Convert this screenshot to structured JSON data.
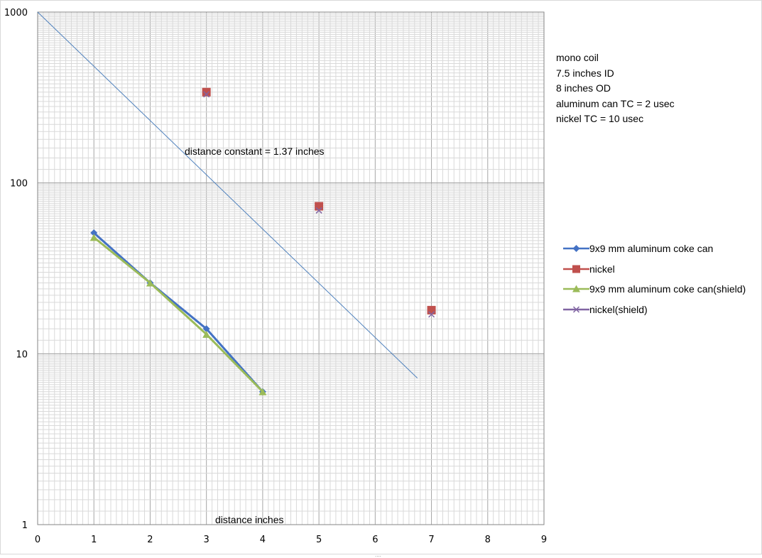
{
  "chart_data": {
    "type": "line",
    "xlim": [
      0,
      9
    ],
    "ylim": [
      1,
      1000
    ],
    "yscale": "log",
    "x_ticks": [
      "0",
      "1",
      "2",
      "3",
      "4",
      "5",
      "6",
      "7",
      "8",
      "9"
    ],
    "y_ticks": [
      {
        "value": 1,
        "label": "1"
      },
      {
        "value": 10,
        "label": "10"
      },
      {
        "value": 100,
        "label": "100"
      },
      {
        "value": 1000,
        "label": "1000"
      }
    ],
    "grid": true,
    "legend_position": "right",
    "series": [
      {
        "name": "9x9 mm aluminum coke can",
        "color": "#4472C4",
        "marker": "diamond",
        "line": true,
        "x": [
          1,
          2,
          3,
          4
        ],
        "y": [
          51,
          26,
          14,
          6
        ]
      },
      {
        "name": "nickel",
        "color": "#C0504D",
        "marker": "square",
        "line": false,
        "x": [
          3,
          5,
          7
        ],
        "y": [
          340,
          73,
          18
        ]
      },
      {
        "name": "9x9 mm aluminum coke can(shield)",
        "color": "#9BBB59",
        "marker": "triangle",
        "line": true,
        "x": [
          1,
          2,
          3,
          4
        ],
        "y": [
          48,
          26,
          13,
          6
        ]
      },
      {
        "name": "nickel(shield)",
        "color": "#8064A2",
        "marker": "x",
        "line": false,
        "x": [
          3,
          5,
          7
        ],
        "y": [
          330,
          69,
          17
        ]
      }
    ],
    "trendline": {
      "color": "#4F81BD",
      "x": [
        0,
        6.75
      ],
      "y": [
        1000,
        7.2
      ]
    },
    "annotations": [
      "distance constant = 1.37 inches",
      "distance inches"
    ]
  },
  "notes": [
    "mono coil",
    "7.5 inches ID",
    "8 inches OD",
    "",
    "aluminum can TC = 2 usec",
    "nickel TC = 10 usec"
  ],
  "annotation_distance_constant": "distance constant = 1.37 inches",
  "annotation_xlabel": "distance inches",
  "resize_glyph": "....",
  "colors": {
    "grid": "#a6a6a6",
    "minor_grid": "#d9d9d9"
  }
}
